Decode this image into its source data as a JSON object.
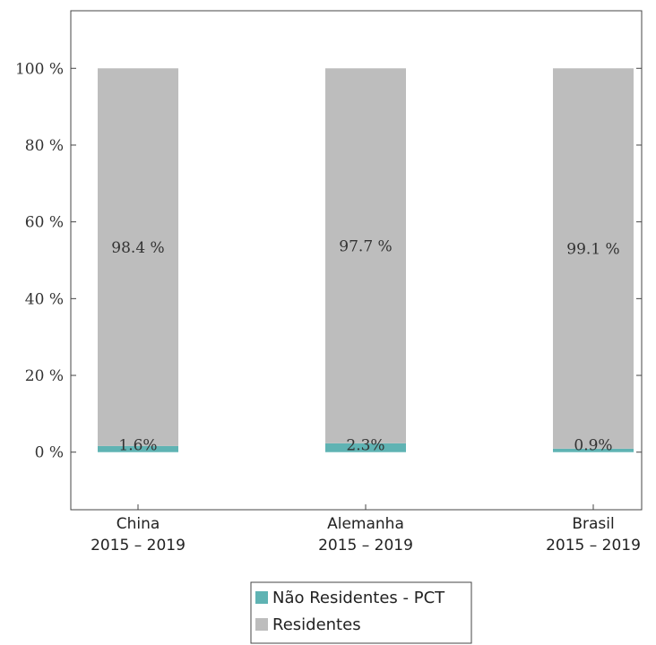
{
  "chart_data": {
    "type": "bar",
    "stacked": true,
    "categories": [
      [
        "China",
        "2015 – 2019"
      ],
      [
        "Alemanha",
        "2015 – 2019"
      ],
      [
        "Brasil",
        "2015 – 2019"
      ]
    ],
    "series": [
      {
        "name": "Não Residentes - PCT",
        "values": [
          1.6,
          2.3,
          0.9
        ],
        "labels": [
          "1.6%",
          "2.3%",
          "0.9%"
        ],
        "color": "#5fb3b3"
      },
      {
        "name": "Residentes",
        "values": [
          98.4,
          97.7,
          99.1
        ],
        "labels": [
          "98.4 %",
          "97.7 %",
          "99.1 %"
        ],
        "color": "#bdbdbd"
      }
    ],
    "ylim": [
      -15,
      115
    ],
    "yticks": [
      0,
      20,
      40,
      60,
      80,
      100
    ],
    "ytick_labels": [
      "0 %",
      "20 %",
      "40 %",
      "60 %",
      "80 %",
      "100 %"
    ],
    "legend_position": "bottom-center",
    "grid": false
  }
}
